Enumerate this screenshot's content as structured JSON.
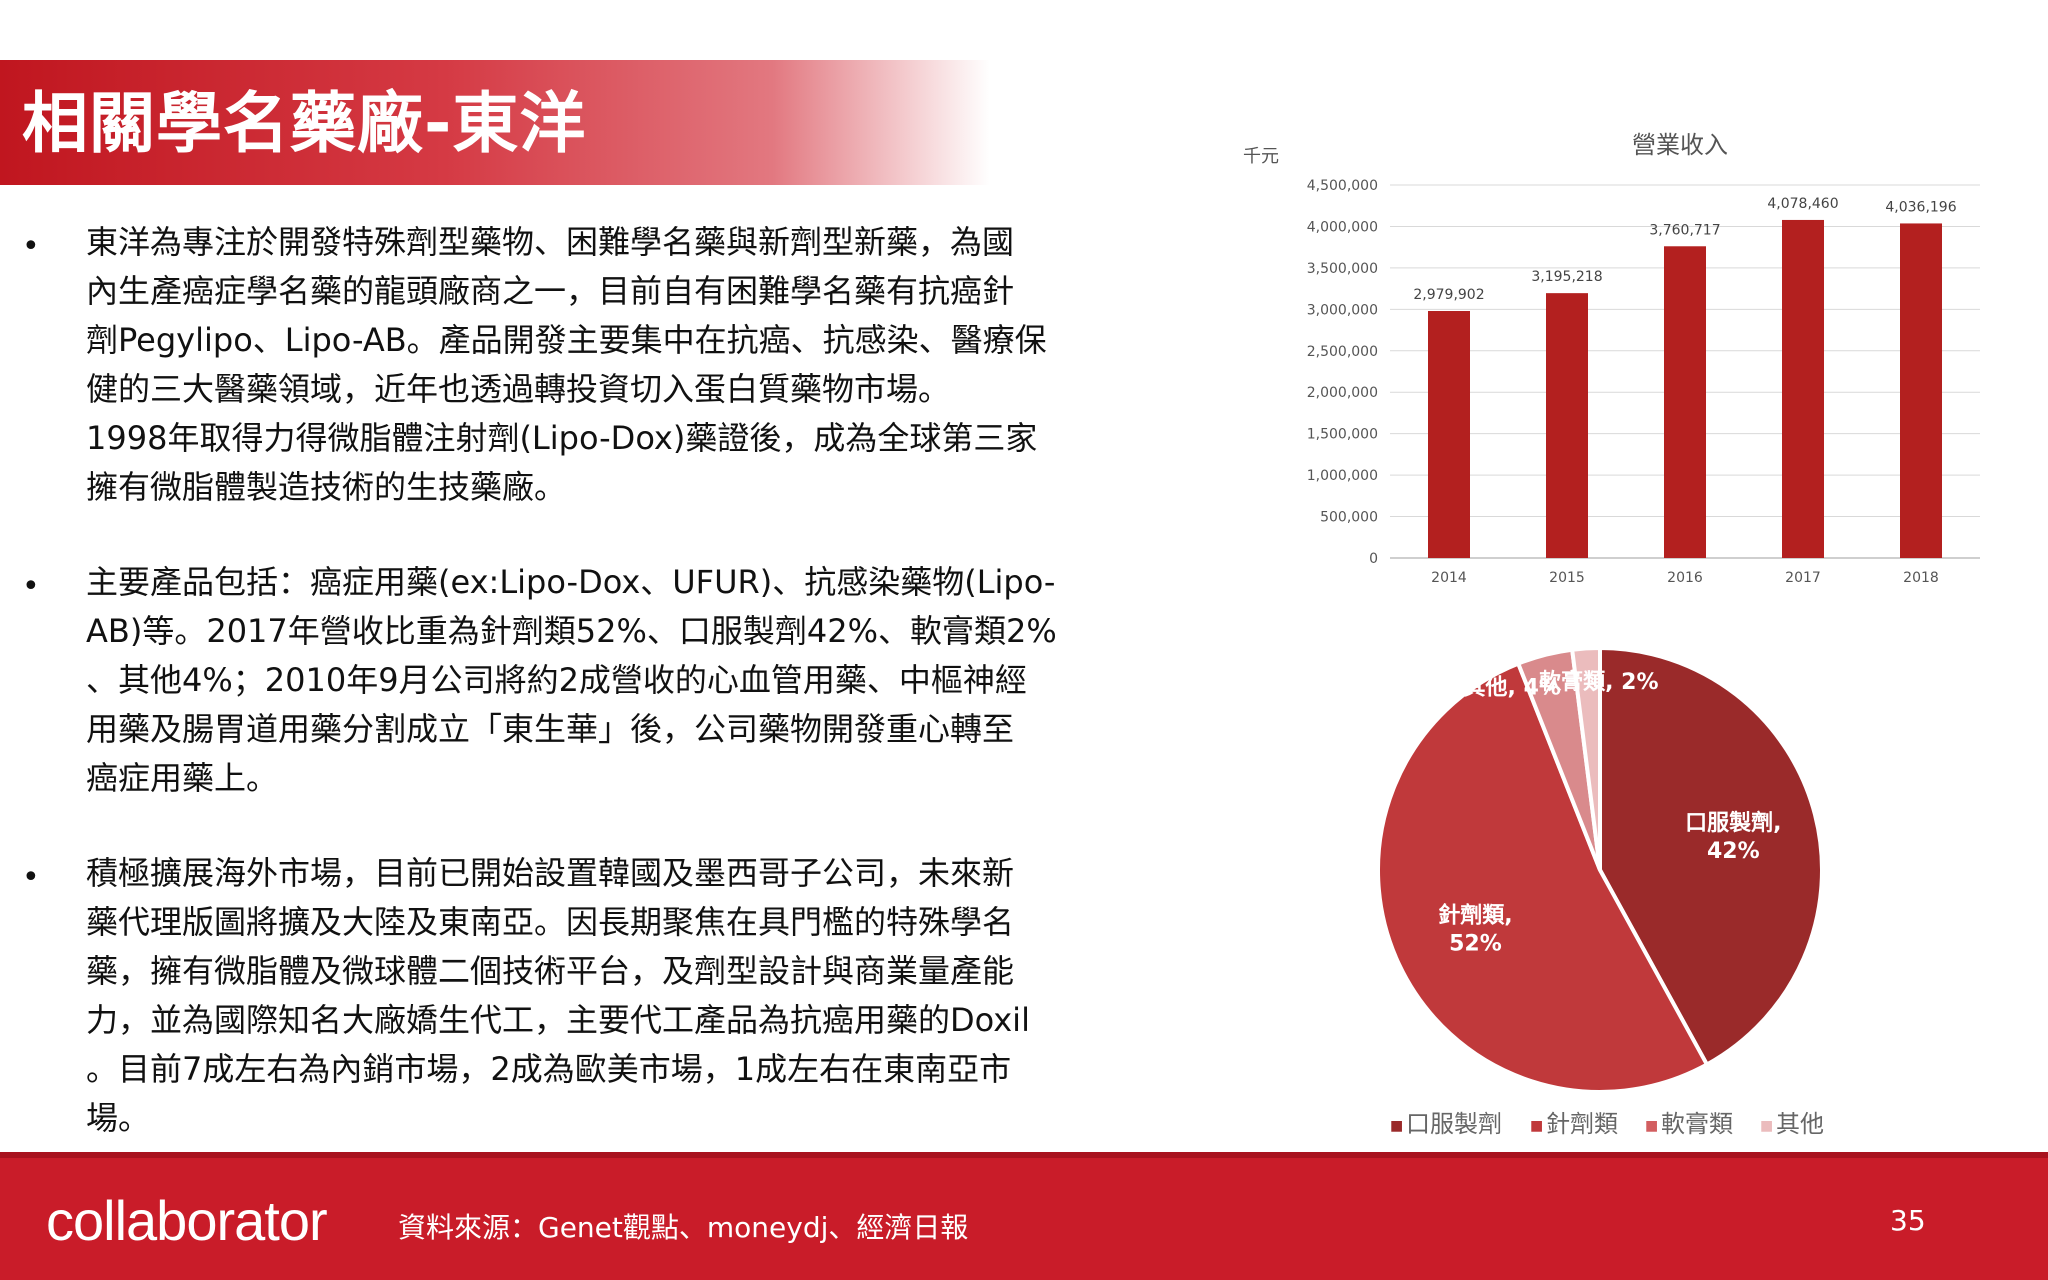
{
  "title": "相關學名藥廠-東洋",
  "bullets": [
    {
      "lines": [
        "東洋為專注於開發特殊劑型藥物、困難學名藥與新劑型新藥，為國",
        "內生產癌症學名藥的龍頭廠商之一，目前自有困難學名藥有抗癌針",
        "劑Pegylipo、Lipo-AB。產品開發主要集中在抗癌、抗感染、醫療保",
        "健的三大醫藥領域，近年也透過轉投資切入蛋白質藥物市場。",
        "1998年取得力得微脂體注射劑(Lipo-Dox)藥證後，成為全球第三家",
        "擁有微脂體製造技術的生技藥廠。"
      ]
    },
    {
      "lines": [
        "主要產品包括：癌症用藥(ex:Lipo-Dox、UFUR)、抗感染藥物(Lipo-",
        "AB)等。2017年營收比重為針劑類52%、口服製劑42%、軟膏類2%",
        "、其他4%；2010年9月公司將約2成營收的心血管用藥、中樞神經",
        "用藥及腸胃道用藥分割成立「東生華」後，公司藥物開發重心轉至",
        "癌症用藥上。"
      ]
    },
    {
      "lines": [
        "積極擴展海外市場，目前已開始設置韓國及墨西哥子公司，未來新",
        "藥代理版圖將擴及大陸及東南亞。因長期聚焦在具門檻的特殊學名",
        "藥，擁有微脂體及微球體二個技術平台，及劑型設計與商業量產能",
        "力，並為國際知名大廠嬌生代工，主要代工產品為抗癌用藥的Doxil",
        "。目前7成左右為內銷市場，2成為歐美市場，1成左右在東南亞市",
        "場。"
      ]
    }
  ],
  "bullet_symbol": "•",
  "chart_data": [
    {
      "type": "bar",
      "title": "營業收入",
      "ylabel": "千元",
      "categories": [
        "2014",
        "2015",
        "2016",
        "2017",
        "2018"
      ],
      "values": [
        2979902,
        3195218,
        3760717,
        4078460,
        4036196
      ],
      "value_labels": [
        "2,979,902",
        "3,195,218",
        "3,760,717",
        "4,078,460",
        "4,036,196"
      ],
      "ylim": [
        0,
        4500000
      ],
      "yticks": [
        0,
        500000,
        1000000,
        1500000,
        2000000,
        2500000,
        3000000,
        3500000,
        4000000,
        4500000
      ],
      "ytick_labels": [
        "0",
        "500,000",
        "1,000,000",
        "1,500,000",
        "2,000,000",
        "2,500,000",
        "3,000,000",
        "3,500,000",
        "4,000,000",
        "4,500,000"
      ],
      "grid": true,
      "bar_color": "#b3201f"
    },
    {
      "type": "pie",
      "slices": [
        {
          "name": "口服製劑",
          "value": 42,
          "label_lines": [
            "口服製劑,",
            "42%"
          ],
          "color": "#9a2a2a"
        },
        {
          "name": "針劑類",
          "value": 52,
          "label_lines": [
            "針劑類,",
            "52%"
          ],
          "color": "#c0393b"
        },
        {
          "name": "其他",
          "value": 4,
          "label_lines": [
            "其他, 4%"
          ],
          "color": "#d98a8c"
        },
        {
          "name": "軟膏類",
          "value": 2,
          "label_lines": [
            "軟膏類, 2%"
          ],
          "color": "#ebbcbd"
        }
      ],
      "legend": [
        "口服製劑",
        "針劑類",
        "軟膏類",
        "其他"
      ],
      "legend_colors": [
        "#9a2a2a",
        "#c0393b",
        "#d25e60",
        "#ebbcbd"
      ],
      "legend_marker": "■",
      "legend_placement": "bottom"
    }
  ],
  "footer": {
    "logo": "collaborator",
    "source": "資料來源：Genet觀點、moneydj、經濟日報",
    "page_number": "35"
  }
}
